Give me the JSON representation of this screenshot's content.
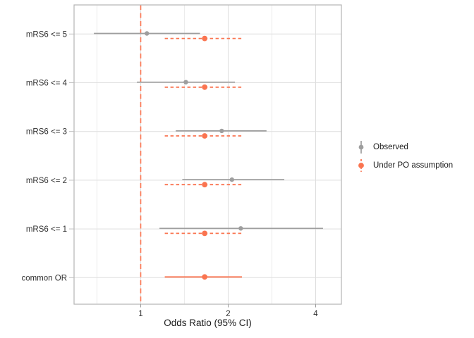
{
  "figure": {
    "background": "#FFFFFF",
    "axis_text_color": "#303030",
    "panel_border_color": "#B5B5B5",
    "grid_major_color": "#DEDEDE",
    "grid_minor_color": "#ECECEC"
  },
  "chart_data": {
    "type": "forest-pointrange",
    "title": "",
    "xlabel": "Odds Ratio (95% CI)",
    "x_scale": "log2",
    "x_ticks": [
      1,
      2,
      4
    ],
    "x_minor_breaks": [
      0.707,
      1.414,
      2.828
    ],
    "x_domain": [
      0.59,
      4.93
    ],
    "grid": true,
    "legend_position": "right",
    "reference_line": {
      "x": 1,
      "color": "#FA7450",
      "style": "dashed"
    },
    "categories": [
      "mRS6 <= 5",
      "mRS6 <= 4",
      "mRS6 <= 3",
      "mRS6 <= 2",
      "mRS6 <= 1",
      "common OR"
    ],
    "series": [
      {
        "name": "Observed",
        "color": "#9E9E9E",
        "linestyle": "solid",
        "points": [
          {
            "category": "mRS6 <= 5",
            "or": 1.05,
            "lo": 0.69,
            "hi": 1.6
          },
          {
            "category": "mRS6 <= 4",
            "or": 1.43,
            "lo": 0.97,
            "hi": 2.11
          },
          {
            "category": "mRS6 <= 3",
            "or": 1.9,
            "lo": 1.32,
            "hi": 2.71
          },
          {
            "category": "mRS6 <= 2",
            "or": 2.06,
            "lo": 1.39,
            "hi": 3.12
          },
          {
            "category": "mRS6 <= 1",
            "or": 2.21,
            "lo": 1.16,
            "hi": 4.24
          }
        ]
      },
      {
        "name": "Under PO assumption",
        "color": "#FA7450",
        "linestyle": "dashed",
        "points": [
          {
            "category": "mRS6 <= 5",
            "or": 1.66,
            "lo": 1.21,
            "hi": 2.23
          },
          {
            "category": "mRS6 <= 4",
            "or": 1.66,
            "lo": 1.21,
            "hi": 2.23
          },
          {
            "category": "mRS6 <= 3",
            "or": 1.66,
            "lo": 1.21,
            "hi": 2.23
          },
          {
            "category": "mRS6 <= 2",
            "or": 1.66,
            "lo": 1.21,
            "hi": 2.23
          },
          {
            "category": "mRS6 <= 1",
            "or": 1.66,
            "lo": 1.21,
            "hi": 2.23
          },
          {
            "category": "common OR",
            "or": 1.66,
            "lo": 1.21,
            "hi": 2.23,
            "linestyle": "solid"
          }
        ]
      }
    ]
  }
}
